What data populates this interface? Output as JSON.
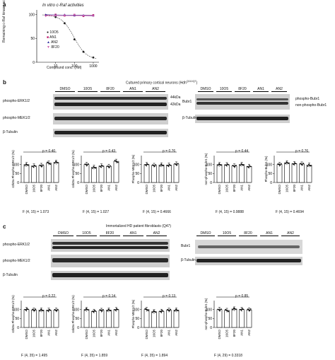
{
  "panel_a": {
    "letter": "a",
    "title": "In vitro c-Raf activities",
    "ylabel": "Remaining c-Raf kinase activity (%)",
    "xlabel": "Compound conc. (nM)",
    "legend": [
      "10O5",
      "AN1",
      "AN2",
      "8F20"
    ]
  },
  "panel_b": {
    "letter": "b",
    "title": "Cultured primary cortical neurons (Hdh",
    "title_sup": "Q111/Q7",
    "title_end": ")",
    "lanes_left": [
      "DMSO",
      "10O5",
      "8F20",
      "AN1",
      "AN2"
    ],
    "lanes_right": [
      "DMSO",
      "10O5",
      "8F20",
      "AN1",
      "AN2"
    ],
    "blot_labels_left": [
      "phospho-ERK1/2",
      "phospho-MEK1/2",
      "β-Tubulin"
    ],
    "blot_labels_right": [
      "Bubr1",
      "β-Tubulin"
    ],
    "mw": [
      "44kDa",
      "42kDa"
    ],
    "bubr1_bands": [
      "phospho-Bubr1",
      "non-phospho-Bubr1"
    ],
    "bars": [
      {
        "p": "p = 0.40",
        "ylabel": "42kDa Phospho-ERK1/2 (%)",
        "F": "F (4, 15) = 1.073"
      },
      {
        "p": "p = 0.43",
        "ylabel": "44kDa Phospho-ERK1/2 (%)",
        "F": "F (4, 15) = 1.027"
      },
      {
        "p": "p = 0.76",
        "ylabel": "Phospho-MEK1/2 (%)",
        "F": "F (4, 15) = 0.4666"
      },
      {
        "p": "p = 0.44",
        "ylabel": "non-phospho-Bubr1 (%)",
        "F": "F (4, 15) = 0.9888"
      },
      {
        "p": "p = 0.76",
        "ylabel": "Phospho-Bubr1 (%)",
        "F": "F (4, 15) = 0.4694"
      }
    ]
  },
  "panel_c": {
    "letter": "c",
    "title": "Immortalized HD patient  fibroblasts (Q47)",
    "lanes_left": [
      "DMSO",
      "10O5",
      "8F20",
      "AN1",
      "AN2"
    ],
    "lanes_right": [
      "DMSO",
      "10O5",
      "8F20",
      "AN1",
      "AN2"
    ],
    "blot_labels_left": [
      "phospho-ERK1/2",
      "phospho-MEK1/2",
      "β-Tubulin"
    ],
    "blot_labels_right": [
      "Bubr1",
      "β-Tubulin"
    ],
    "bars": [
      {
        "p": "p = 0.22",
        "ylabel": "42kDa Phospho-ERK1/2 (%)",
        "F": "F (4, 35) = 1.495"
      },
      {
        "p": "p = 0.14",
        "ylabel": "44kDa Phospho-ERK1/2 (%)",
        "F": "F (4, 35) = 1.859"
      },
      {
        "p": "p = 0.13",
        "ylabel": "Phospho-MEK1/2 (%)",
        "F": "F (4, 35) = 1.894"
      },
      {
        "p": "p = 0.85",
        "ylabel": "non-phospho-Bubr1 (%)",
        "F": "F (4, 29) = 0.3318"
      }
    ]
  },
  "bar_categories": [
    "DMSO",
    "10O5",
    "8F20",
    "AN1",
    "AN2"
  ],
  "chart_data": [
    {
      "type": "scatter",
      "title": "In vitro c-Raf activities",
      "xlabel": "Compound conc. (nM)",
      "ylabel": "Remaining c-Raf kinase activity (%)",
      "xscale": "log",
      "xticks": [
        10,
        100,
        1000
      ],
      "yticks": [
        0,
        50,
        100
      ],
      "ylim": [
        0,
        110
      ],
      "xlim": [
        1,
        2000
      ],
      "series": [
        {
          "name": "10O5",
          "color": "#222222",
          "x": [
            3,
            10,
            30,
            100,
            300,
            1000
          ],
          "y": [
            99,
            95,
            82,
            48,
            22,
            10
          ]
        },
        {
          "name": "AN1",
          "color": "#c02070",
          "x": [
            3,
            10,
            30,
            100,
            300,
            1000
          ],
          "y": [
            99,
            100,
            98,
            99,
            97,
            99
          ]
        },
        {
          "name": "AN2",
          "color": "#3030a0",
          "x": [
            3,
            10,
            30,
            100,
            300,
            1000
          ],
          "y": [
            100,
            99,
            100,
            98,
            99,
            98
          ]
        },
        {
          "name": "8F20",
          "color": "#d060b0",
          "x": [
            3,
            10,
            30,
            100,
            300,
            1000
          ],
          "y": [
            97,
            98,
            99,
            100,
            98,
            97
          ]
        }
      ]
    },
    {
      "type": "bar",
      "categories": [
        "DMSO",
        "10O5",
        "8F20",
        "AN1",
        "AN2"
      ],
      "values": [
        100,
        92,
        95,
        108,
        112
      ],
      "ylabel": "42kDa Phospho-ERK1/2 (%)",
      "yticks": [
        0,
        50,
        100
      ],
      "ylim": [
        0,
        150
      ]
    },
    {
      "type": "bar",
      "categories": [
        "DMSO",
        "10O5",
        "8F20",
        "AN1",
        "AN2"
      ],
      "values": [
        100,
        85,
        92,
        90,
        118
      ],
      "ylabel": "44kDa Phospho-ERK1/2 (%)",
      "yticks": [
        0,
        50,
        100
      ],
      "ylim": [
        0,
        150
      ]
    },
    {
      "type": "bar",
      "categories": [
        "DMSO",
        "10O5",
        "8F20",
        "AN1",
        "AN2"
      ],
      "values": [
        100,
        95,
        98,
        97,
        103
      ],
      "ylabel": "Phospho-MEK1/2 (%)",
      "yticks": [
        0,
        50,
        100
      ],
      "ylim": [
        0,
        150
      ]
    },
    {
      "type": "bar",
      "categories": [
        "DMSO",
        "10O5",
        "8F20",
        "AN1",
        "AN2"
      ],
      "values": [
        100,
        99,
        92,
        101,
        90
      ],
      "ylabel": "non-phospho-Bubr1 (%)",
      "yticks": [
        0,
        50,
        100
      ],
      "ylim": [
        0,
        150
      ]
    },
    {
      "type": "bar",
      "categories": [
        "DMSO",
        "10O5",
        "8F20",
        "AN1",
        "AN2"
      ],
      "values": [
        100,
        110,
        105,
        103,
        97
      ],
      "ylabel": "Phospho-Bubr1 (%)",
      "yticks": [
        0,
        50,
        100
      ],
      "ylim": [
        0,
        150
      ]
    },
    {
      "type": "bar",
      "categories": [
        "DMSO",
        "10O5",
        "8F20",
        "AN1",
        "AN2"
      ],
      "values": [
        100,
        97,
        97,
        96,
        97
      ],
      "ylabel": "42kDa Phospho-ERK1/2 (%)",
      "yticks": [
        0,
        50,
        100
      ],
      "ylim": [
        0,
        150
      ]
    },
    {
      "type": "bar",
      "categories": [
        "DMSO",
        "10O5",
        "8F20",
        "AN1",
        "AN2"
      ],
      "values": [
        100,
        90,
        95,
        97,
        100
      ],
      "ylabel": "44kDa Phospho-ERK1/2 (%)",
      "yticks": [
        0,
        50,
        100
      ],
      "ylim": [
        0,
        150
      ]
    },
    {
      "type": "bar",
      "categories": [
        "DMSO",
        "10O5",
        "8F20",
        "AN1",
        "AN2"
      ],
      "values": [
        100,
        88,
        90,
        96,
        97
      ],
      "ylabel": "Phospho-MEK1/2 (%)",
      "yticks": [
        0,
        50,
        100
      ],
      "ylim": [
        0,
        150
      ]
    },
    {
      "type": "bar",
      "categories": [
        "DMSO",
        "10O5",
        "8F20",
        "AN1",
        "AN2"
      ],
      "values": [
        100,
        95,
        103,
        100,
        98
      ],
      "ylabel": "non-phospho-Bubr1 (%)",
      "yticks": [
        0,
        50,
        100
      ],
      "ylim": [
        0,
        150
      ]
    }
  ]
}
